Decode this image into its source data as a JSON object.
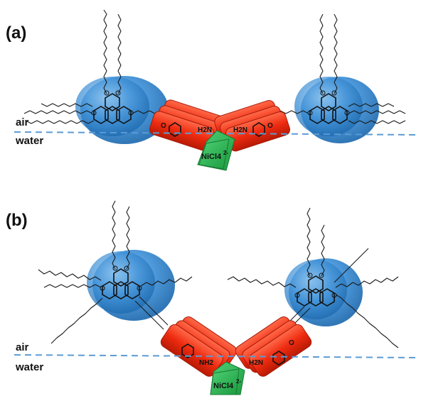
{
  "panels": [
    {
      "label": "(a)",
      "air_label": "air",
      "water_label": "water",
      "ammonium_left": "H2N",
      "ammonium_right": "H2N",
      "salt": "NiCl4",
      "salt_charge": "2-",
      "oxygen": "O"
    },
    {
      "label": "(b)",
      "air_label": "air",
      "water_label": "water",
      "ammonium_left": "NH2",
      "ammonium_right": "H2N",
      "salt": "NiCl4",
      "salt_charge": "2-",
      "oxygen": "O"
    }
  ],
  "colors": {
    "discotic_core": "#3d8fd6",
    "spacer_block": "#ee2b10",
    "salt_block": "#27b34f",
    "interface_line": "#5b9bd5"
  }
}
